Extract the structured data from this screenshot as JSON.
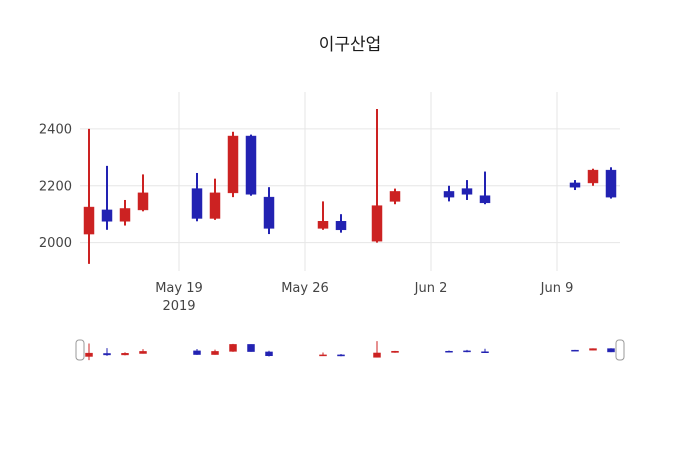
{
  "title": "이구산업",
  "chart_data": {
    "type": "candlestick",
    "title": "이구산업",
    "increasing_color": "#cc2222",
    "decreasing_color": "#2222b2",
    "grid_color": "#e6e6e6",
    "tick_color": "#444444",
    "x": [
      "2019-05-14",
      "2019-05-15",
      "2019-05-16",
      "2019-05-17",
      "2019-05-20",
      "2019-05-21",
      "2019-05-22",
      "2019-05-23",
      "2019-05-24",
      "2019-05-27",
      "2019-05-28",
      "2019-05-30",
      "2019-05-31",
      "2019-06-03",
      "2019-06-04",
      "2019-06-05",
      "2019-06-10",
      "2019-06-11",
      "2019-06-12"
    ],
    "open": [
      2030,
      2115,
      2075,
      2115,
      2190,
      2085,
      2175,
      2375,
      2160,
      2050,
      2075,
      2005,
      2145,
      2180,
      2190,
      2165,
      2210,
      2210,
      2255
    ],
    "high": [
      2400,
      2270,
      2150,
      2240,
      2245,
      2225,
      2390,
      2380,
      2195,
      2145,
      2100,
      2470,
      2190,
      2200,
      2220,
      2250,
      2220,
      2260,
      2265
    ],
    "low": [
      1925,
      2045,
      2060,
      2110,
      2075,
      2080,
      2160,
      2165,
      2030,
      2045,
      2035,
      2000,
      2135,
      2145,
      2150,
      2135,
      2185,
      2200,
      2155
    ],
    "close": [
      2125,
      2075,
      2120,
      2175,
      2085,
      2175,
      2375,
      2170,
      2050,
      2075,
      2045,
      2130,
      2180,
      2160,
      2170,
      2140,
      2195,
      2255,
      2160
    ],
    "ylim": [
      1900,
      2530
    ],
    "yticks": [
      2000,
      2200,
      2400
    ],
    "xrange": [
      "2019-05-13T12",
      "2019-06-12T12"
    ],
    "xticks": [
      {
        "date": "2019-05-19",
        "label": "May 19",
        "sublabel": "2019"
      },
      {
        "date": "2019-05-26",
        "label": "May 26"
      },
      {
        "date": "2019-06-02",
        "label": "Jun 2"
      },
      {
        "date": "2019-06-09",
        "label": "Jun 9"
      }
    ],
    "rangeslider": true
  }
}
